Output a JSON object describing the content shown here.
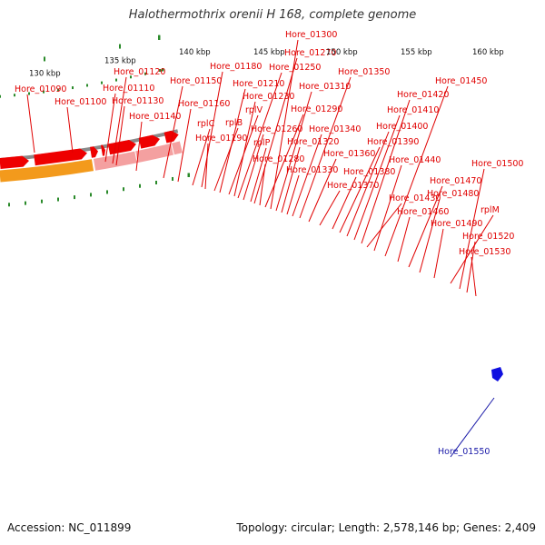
{
  "title": "Halothermothrix orenii H 168, complete genome",
  "footer": {
    "accession": "Accession: NC_011899",
    "summary": "Topology: circular; Length: 2,578,146 bp; Genes: 2,409"
  },
  "colors": {
    "label_red": "#e00000",
    "label_blue": "#1a1aa8",
    "cds_arrow": "#ee0000",
    "backbone": "#8a8a8a",
    "tick_green": "#2a8a2a"
  },
  "scale_ticks": [
    {
      "label": "130 kbp"
    },
    {
      "label": "135 kbp"
    },
    {
      "label": "140 kbp"
    },
    {
      "label": "145 kbp"
    },
    {
      "label": "150 kbp"
    },
    {
      "label": "155 kbp"
    },
    {
      "label": "160 kbp"
    }
  ],
  "gene_labels": [
    {
      "text": "Hore_01090",
      "color": "red"
    },
    {
      "text": "Hore_01100",
      "color": "red"
    },
    {
      "text": "Hore_01110",
      "color": "red"
    },
    {
      "text": "Hore_01120",
      "color": "red"
    },
    {
      "text": "Hore_01130",
      "color": "red"
    },
    {
      "text": "Hore_01140",
      "color": "red"
    },
    {
      "text": "Hore_01150",
      "color": "red"
    },
    {
      "text": "Hore_01160",
      "color": "red"
    },
    {
      "text": "rplC",
      "color": "red"
    },
    {
      "text": "Hore_01180",
      "color": "red"
    },
    {
      "text": "Hore_01190",
      "color": "red"
    },
    {
      "text": "rplB",
      "color": "red"
    },
    {
      "text": "Hore_01210",
      "color": "red"
    },
    {
      "text": "rplV",
      "color": "red"
    },
    {
      "text": "Hore_01230",
      "color": "red"
    },
    {
      "text": "Hore_01250",
      "color": "red"
    },
    {
      "text": "Hore_01260",
      "color": "red"
    },
    {
      "text": "rplP",
      "color": "red"
    },
    {
      "text": "Hore_01270",
      "color": "red"
    },
    {
      "text": "Hore_01280",
      "color": "red"
    },
    {
      "text": "Hore_01290",
      "color": "red"
    },
    {
      "text": "Hore_01300",
      "color": "red"
    },
    {
      "text": "Hore_01310",
      "color": "red"
    },
    {
      "text": "Hore_01320",
      "color": "red"
    },
    {
      "text": "Hore_01330",
      "color": "red"
    },
    {
      "text": "Hore_01340",
      "color": "red"
    },
    {
      "text": "Hore_01350",
      "color": "red"
    },
    {
      "text": "Hore_01360",
      "color": "red"
    },
    {
      "text": "Hore_01370",
      "color": "red"
    },
    {
      "text": "Hore_01380",
      "color": "red"
    },
    {
      "text": "Hore_01390",
      "color": "red"
    },
    {
      "text": "Hore_01400",
      "color": "red"
    },
    {
      "text": "Hore_01410",
      "color": "red"
    },
    {
      "text": "Hore_01420",
      "color": "red"
    },
    {
      "text": "Hore_01430",
      "color": "red"
    },
    {
      "text": "Hore_01440",
      "color": "red"
    },
    {
      "text": "Hore_01450",
      "color": "red"
    },
    {
      "text": "Hore_01460",
      "color": "red"
    },
    {
      "text": "Hore_01470",
      "color": "red"
    },
    {
      "text": "Hore_01480",
      "color": "red"
    },
    {
      "text": "Hore_01490",
      "color": "red"
    },
    {
      "text": "rplM",
      "color": "red"
    },
    {
      "text": "Hore_01500",
      "color": "red"
    },
    {
      "text": "Hore_01520",
      "color": "red"
    },
    {
      "text": "Hore_01530",
      "color": "red"
    },
    {
      "text": "Hore_01550",
      "color": "blue"
    }
  ]
}
